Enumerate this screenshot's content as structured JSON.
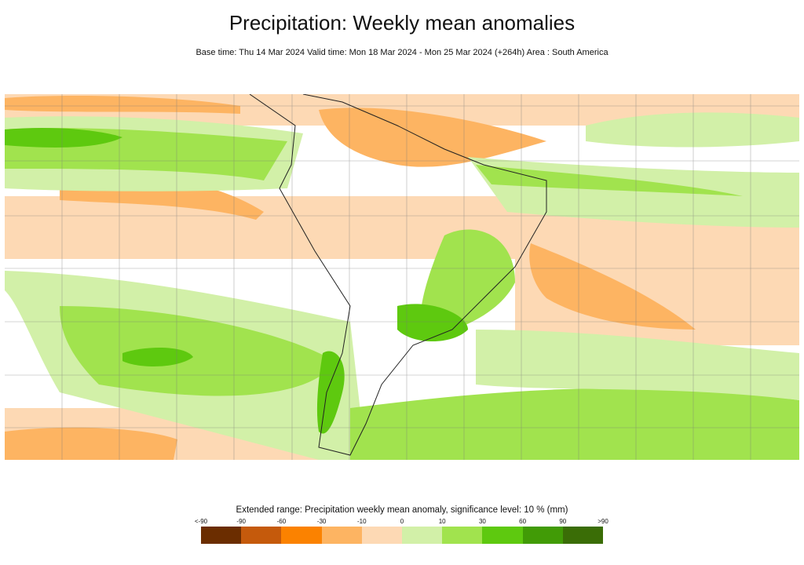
{
  "title": "Precipitation: Weekly mean anomalies",
  "subtitle": "Base time: Thu 14 Mar 2024 Valid time: Mon 18 Mar 2024 - Mon 25 Mar 2024 (+264h) Area : South America",
  "legend": {
    "title": "Extended range: Precipitation weekly mean anomaly, significance level: 10 % (mm)",
    "labels": [
      "<-90",
      "-90",
      "-60",
      "-30",
      "-10",
      "0",
      "10",
      "30",
      "60",
      "90",
      ">90"
    ],
    "colors": [
      "#6b2d00",
      "#c55a0c",
      "#fb8200",
      "#fdb462",
      "#fdd9b4",
      "#d2f0a8",
      "#a1e34e",
      "#5ec90f",
      "#419b06",
      "#3a6d06"
    ]
  }
}
